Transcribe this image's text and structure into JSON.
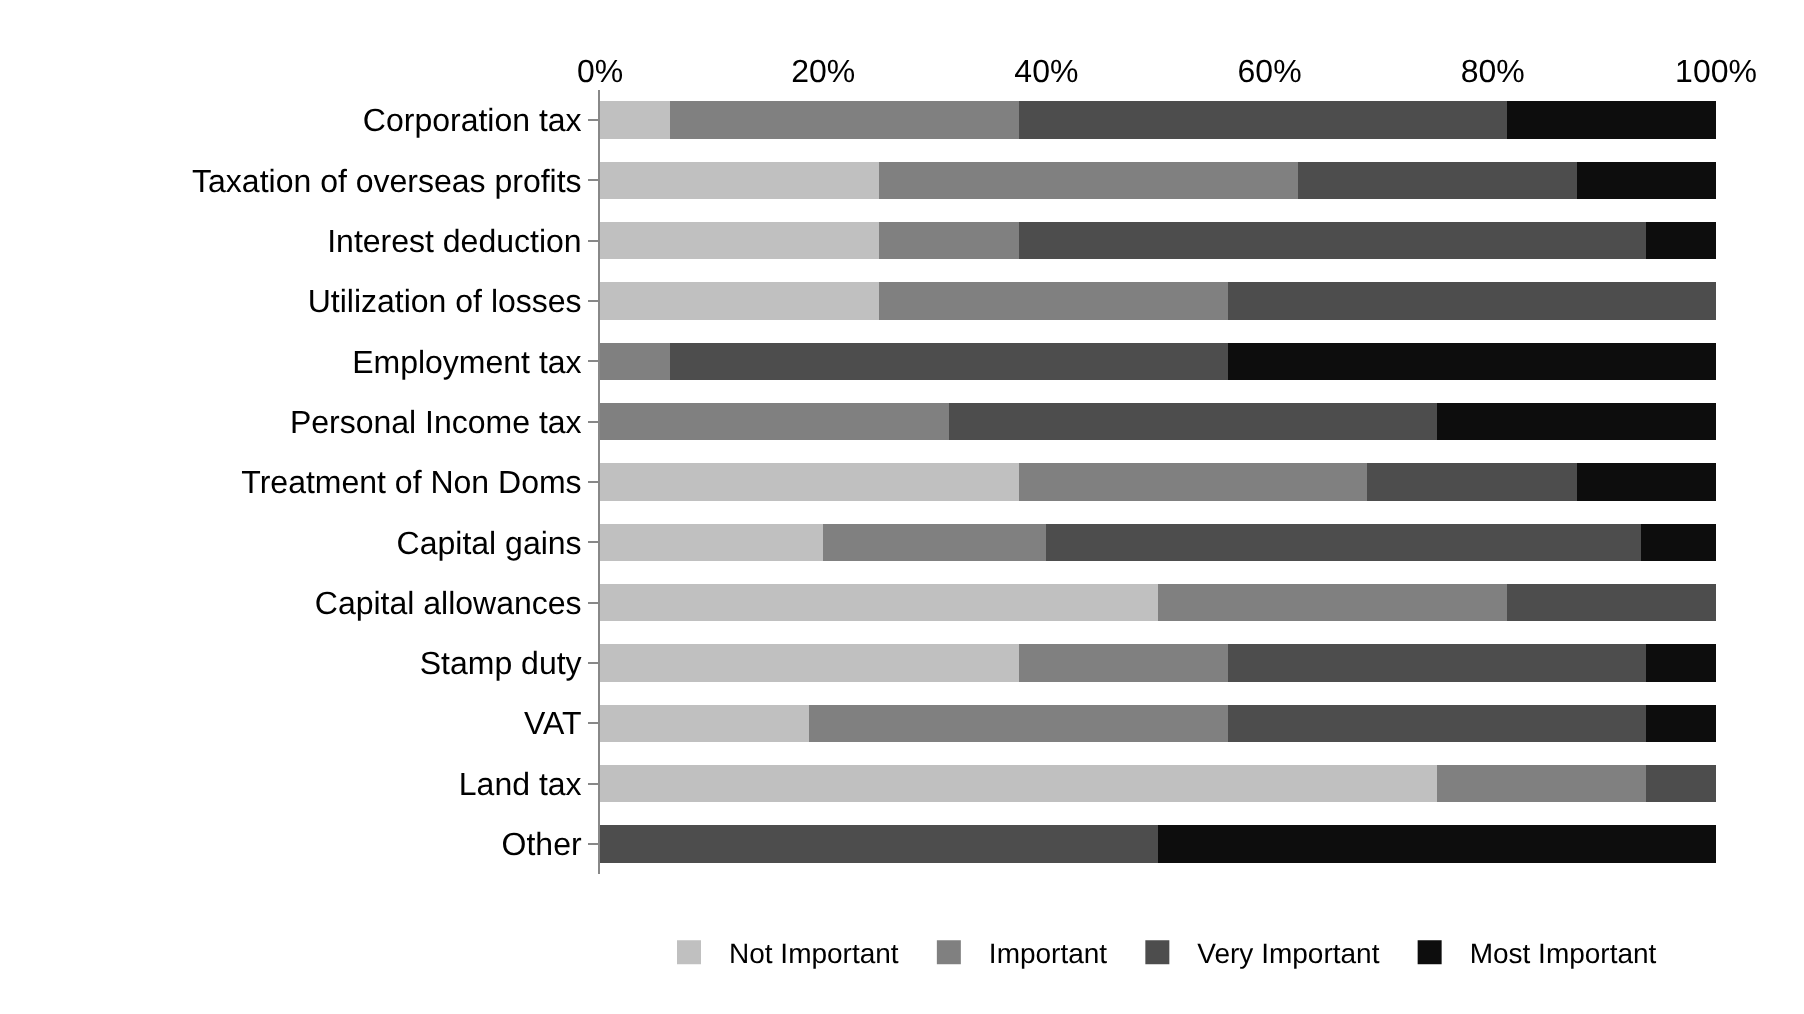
{
  "chart_data": {
    "type": "bar",
    "orientation": "horizontal",
    "stacked": true,
    "categories": [
      "Corporation tax",
      "Taxation of overseas profits",
      "Interest deduction",
      "Utilization of losses",
      "Employment tax",
      "Personal Income tax",
      "Treatment of Non Doms",
      "Capital gains",
      "Capital allowances",
      "Stamp duty",
      "VAT",
      "Land tax",
      "Other"
    ],
    "series": [
      {
        "name": "Not Important",
        "color": "#c0c0c0",
        "values": [
          6.25,
          25,
          25,
          25,
          0,
          0,
          37.5,
          20,
          50,
          37.5,
          18.75,
          75,
          0
        ]
      },
      {
        "name": "Important",
        "color": "#808080",
        "values": [
          31.25,
          37.5,
          12.5,
          31.25,
          6.25,
          31.25,
          31.25,
          20,
          31.25,
          18.75,
          37.5,
          18.75,
          0
        ]
      },
      {
        "name": "Very Important",
        "color": "#4d4d4d",
        "values": [
          43.75,
          25,
          56.25,
          43.75,
          50,
          43.75,
          18.75,
          53.3,
          18.75,
          37.5,
          37.5,
          6.25,
          50
        ]
      },
      {
        "name": "Most Important",
        "color": "#0d0d0d",
        "values": [
          18.75,
          12.5,
          6.25,
          0,
          43.75,
          25,
          12.5,
          6.7,
          0,
          6.25,
          6.25,
          0,
          50
        ]
      }
    ],
    "xlim": [
      0,
      100
    ],
    "xticks": [
      {
        "value": 0,
        "label": "0%"
      },
      {
        "value": 20,
        "label": "20%"
      },
      {
        "value": 40,
        "label": "40%"
      },
      {
        "value": 60,
        "label": "60%"
      },
      {
        "value": 80,
        "label": "80%"
      },
      {
        "value": 100,
        "label": "100%"
      }
    ],
    "grid": false,
    "legend": "bottom"
  }
}
